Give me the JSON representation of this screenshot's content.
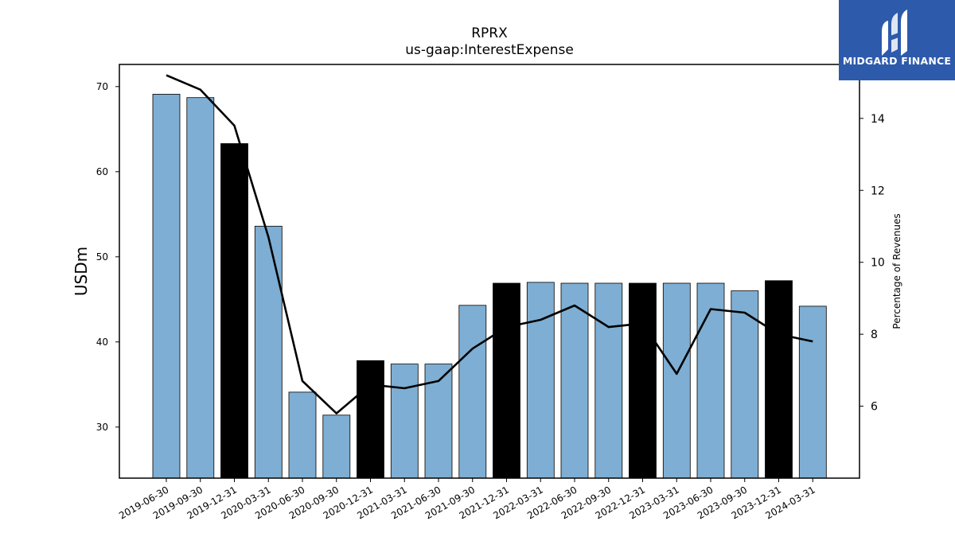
{
  "title": "RPRX",
  "subtitle": "us-gaap:InterestExpense",
  "logo": {
    "text": "MIDGARD FINANCE",
    "icon": "midgard-logo-icon",
    "color": "#2d5aab"
  },
  "colors": {
    "bar": "#7eaed3",
    "bar_highlight": "#000000",
    "line": "#000000"
  },
  "chart_data": {
    "type": "bar",
    "categories": [
      "2019-06-30",
      "2019-09-30",
      "2019-12-31",
      "2020-03-31",
      "2020-06-30",
      "2020-09-30",
      "2020-12-31",
      "2021-03-31",
      "2021-06-30",
      "2021-09-30",
      "2021-12-31",
      "2022-03-31",
      "2022-06-30",
      "2022-09-30",
      "2022-12-31",
      "2023-03-31",
      "2023-06-30",
      "2023-09-30",
      "2023-12-31",
      "2024-03-31"
    ],
    "series": [
      {
        "type": "bar",
        "axis": "left",
        "values": [
          69.1,
          68.7,
          63.3,
          53.6,
          34.1,
          31.4,
          37.8,
          37.4,
          37.4,
          44.3,
          46.9,
          47.0,
          46.9,
          46.9,
          46.9,
          46.9,
          46.9,
          46.0,
          47.2,
          44.2
        ],
        "highlighted": [
          false,
          false,
          true,
          false,
          false,
          false,
          true,
          false,
          false,
          false,
          true,
          false,
          false,
          false,
          true,
          false,
          false,
          false,
          true,
          false
        ]
      },
      {
        "type": "line",
        "axis": "right",
        "values": [
          15.2,
          14.8,
          13.8,
          10.7,
          6.7,
          5.8,
          6.6,
          6.5,
          6.7,
          7.6,
          8.2,
          8.4,
          8.8,
          8.2,
          8.3,
          6.9,
          8.7,
          8.6,
          8.0,
          7.8
        ]
      }
    ],
    "ylabel": "USDm",
    "y2label": "Percentage of Revenues",
    "ylim": [
      24,
      72.6
    ],
    "y2lim": [
      4.0,
      15.5
    ],
    "yticks": [
      30,
      40,
      50,
      60,
      70
    ],
    "y2ticks": [
      6,
      8,
      10,
      12,
      14
    ],
    "grid": false,
    "legend": "none"
  }
}
